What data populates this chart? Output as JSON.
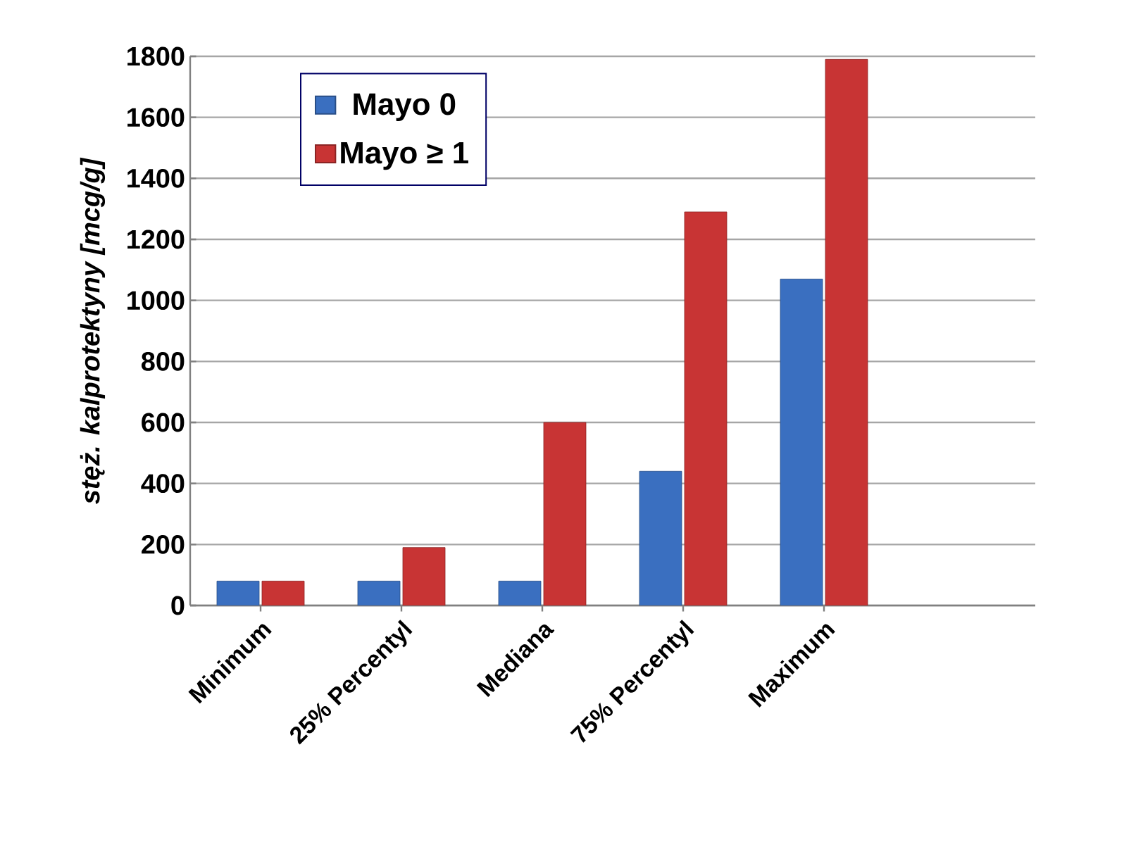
{
  "chart_data": {
    "type": "bar",
    "ylabel": "*stęż. kalprotektyny [mcg/g]*",
    "categories": [
      "Minimum",
      "25% Percentyl",
      "Mediana",
      "75% Percentyl",
      "Maximum"
    ],
    "series": [
      {
        "name": "Mayo 0",
        "color": "#3a6fc0",
        "values": [
          80,
          80,
          80,
          440,
          1070
        ]
      },
      {
        "name": "Mayo ≥ 1",
        "color": "#c83434",
        "values": [
          80,
          190,
          600,
          1290,
          1790
        ]
      }
    ],
    "ylim": [
      0,
      1800
    ],
    "yticks": [
      0,
      200,
      400,
      600,
      800,
      1000,
      1200,
      1400,
      1600,
      1800
    ],
    "grid": "y",
    "legend": "top left"
  }
}
